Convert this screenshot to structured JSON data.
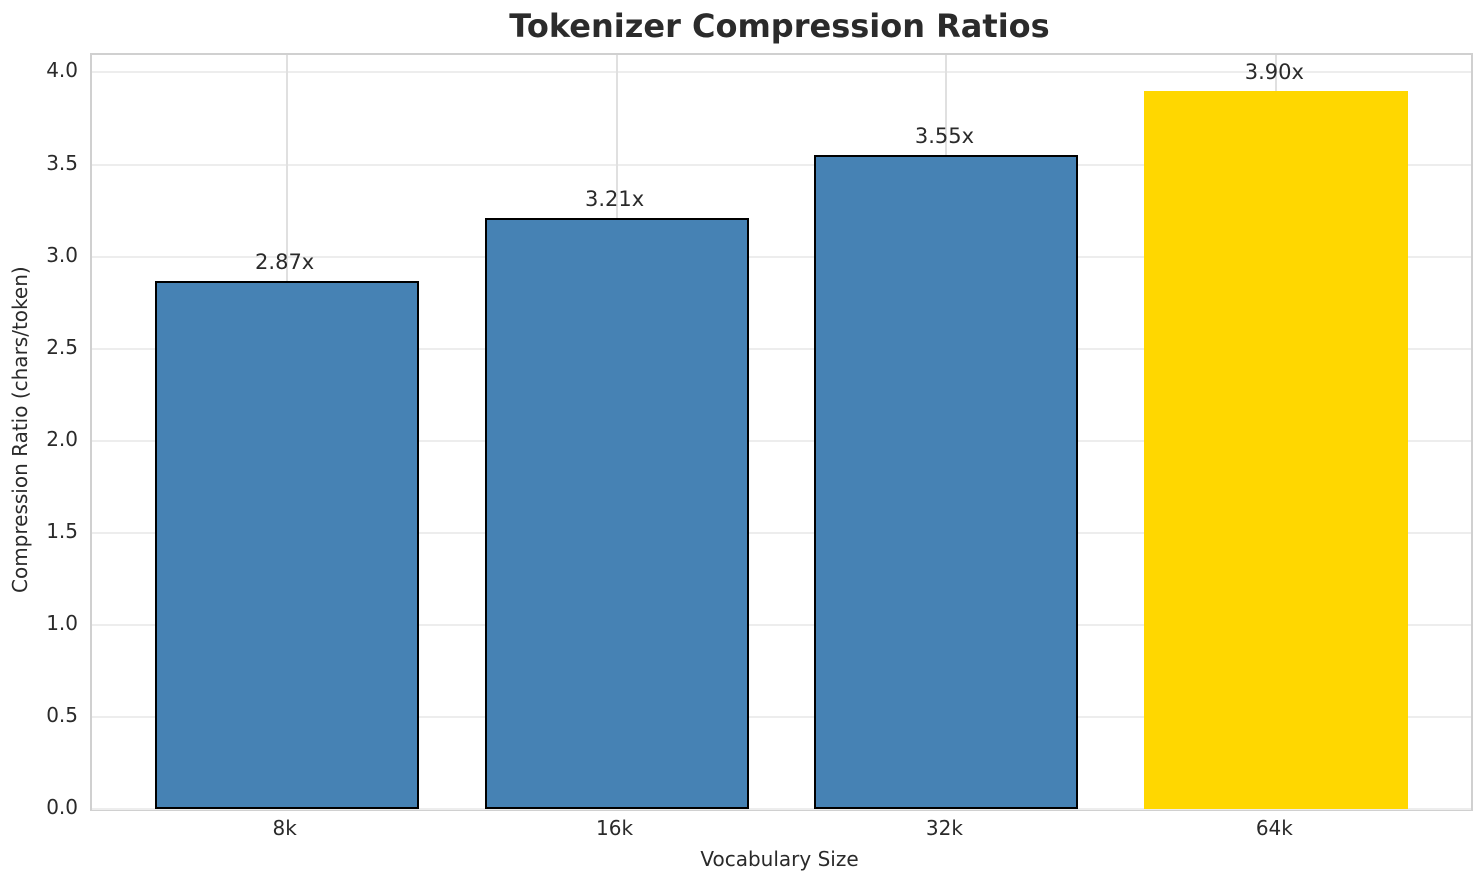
{
  "chart_data": {
    "type": "bar",
    "title": "Tokenizer Compression Ratios",
    "xlabel": "Vocabulary Size",
    "ylabel": "Compression Ratio (chars/token)",
    "categories": [
      "8k",
      "16k",
      "32k",
      "64k"
    ],
    "values": [
      2.87,
      3.21,
      3.55,
      3.9
    ],
    "bar_labels": [
      "2.87x",
      "3.21x",
      "3.55x",
      "3.90x"
    ],
    "bar_colors": [
      "#4682B4",
      "#4682B4",
      "#4682B4",
      "#FFD700"
    ],
    "bar_edge_colors": [
      "#000000",
      "#000000",
      "#000000",
      "none"
    ],
    "highlight_index": 3,
    "yticks": [
      "0.0",
      "0.5",
      "1.0",
      "1.5",
      "2.0",
      "2.5",
      "3.0",
      "3.5",
      "4.0"
    ],
    "ylim": [
      0,
      4.095
    ],
    "xlim": [
      -0.59,
      3.59
    ],
    "bar_width_units": 0.8,
    "grid": true,
    "legend": "none"
  }
}
